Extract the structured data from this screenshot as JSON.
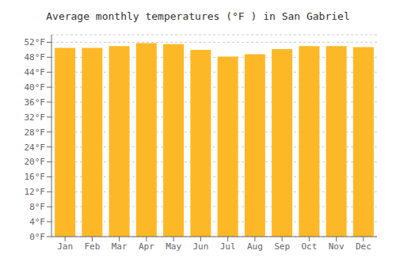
{
  "chart_data": {
    "type": "bar",
    "title": "Average monthly temperatures (°F ) in San Gabriel",
    "categories": [
      "Jan",
      "Feb",
      "Mar",
      "Apr",
      "May",
      "Jun",
      "Jul",
      "Aug",
      "Sep",
      "Oct",
      "Nov",
      "Dec"
    ],
    "values": [
      50.5,
      50.5,
      51.0,
      51.8,
      51.5,
      50.0,
      48.2,
      48.8,
      50.2,
      51.0,
      51.0,
      50.7
    ],
    "color": "#FDB827",
    "ylim": [
      0,
      54
    ],
    "yticks": [
      {
        "value": 0,
        "label": "0°F"
      },
      {
        "value": 4,
        "label": "4°F"
      },
      {
        "value": 8,
        "label": "8°F"
      },
      {
        "value": 12,
        "label": "12°F"
      },
      {
        "value": 16,
        "label": "16°F"
      },
      {
        "value": 20,
        "label": "20°F"
      },
      {
        "value": 24,
        "label": "24°F"
      },
      {
        "value": 28,
        "label": "28°F"
      },
      {
        "value": 32,
        "label": "32°F"
      },
      {
        "value": 36,
        "label": "36°F"
      },
      {
        "value": 40,
        "label": "40°F"
      },
      {
        "value": 44,
        "label": "44°F"
      },
      {
        "value": 48,
        "label": "48°F"
      },
      {
        "value": 52,
        "label": "52°F"
      }
    ],
    "grid": true
  }
}
